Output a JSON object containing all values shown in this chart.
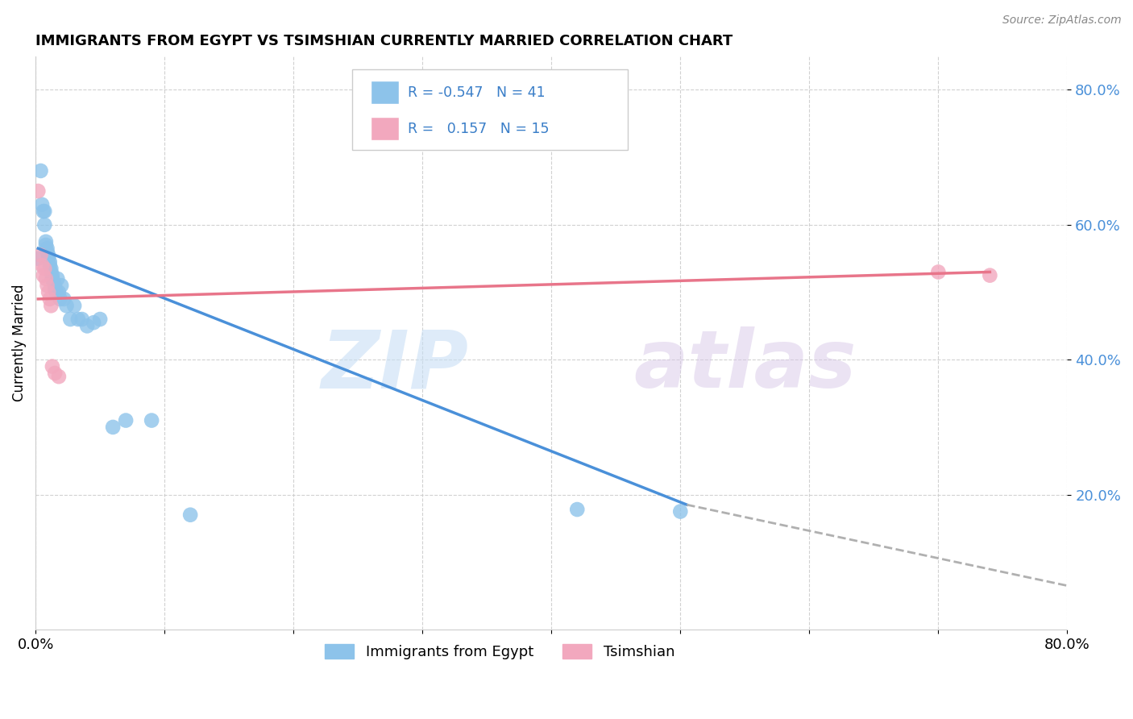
{
  "title": "IMMIGRANTS FROM EGYPT VS TSIMSHIAN CURRENTLY MARRIED CORRELATION CHART",
  "source": "Source: ZipAtlas.com",
  "ylabel": "Currently Married",
  "xlim": [
    0.0,
    0.8
  ],
  "ylim": [
    0.0,
    0.85
  ],
  "yticks": [
    0.2,
    0.4,
    0.6,
    0.8
  ],
  "ytick_labels": [
    "20.0%",
    "40.0%",
    "60.0%",
    "80.0%"
  ],
  "xticks": [
    0.0,
    0.1,
    0.2,
    0.3,
    0.4,
    0.5,
    0.6,
    0.7,
    0.8
  ],
  "xtick_labels": [
    "0.0%",
    "",
    "",
    "",
    "",
    "",
    "",
    "",
    "80.0%"
  ],
  "blue_color": "#8dc3ea",
  "pink_color": "#f2a8be",
  "blue_line_color": "#4a90d9",
  "pink_line_color": "#e8758a",
  "dashed_line_color": "#b0b0b0",
  "watermark_zip": "ZIP",
  "watermark_atlas": "atlas",
  "legend_label_blue": "Immigrants from Egypt",
  "legend_label_pink": "Tsimshian",
  "background_color": "#ffffff",
  "grid_color": "#cccccc",
  "blue_x": [
    0.002,
    0.004,
    0.005,
    0.006,
    0.007,
    0.007,
    0.008,
    0.008,
    0.009,
    0.009,
    0.01,
    0.01,
    0.011,
    0.011,
    0.012,
    0.012,
    0.013,
    0.013,
    0.014,
    0.015,
    0.015,
    0.016,
    0.017,
    0.018,
    0.019,
    0.02,
    0.022,
    0.024,
    0.027,
    0.03,
    0.033,
    0.036,
    0.04,
    0.045,
    0.05,
    0.06,
    0.07,
    0.09,
    0.12,
    0.42,
    0.5
  ],
  "blue_y": [
    0.55,
    0.68,
    0.63,
    0.62,
    0.62,
    0.6,
    0.57,
    0.575,
    0.565,
    0.56,
    0.555,
    0.55,
    0.545,
    0.54,
    0.535,
    0.53,
    0.525,
    0.52,
    0.515,
    0.51,
    0.505,
    0.5,
    0.52,
    0.5,
    0.49,
    0.51,
    0.49,
    0.48,
    0.46,
    0.48,
    0.46,
    0.46,
    0.45,
    0.455,
    0.46,
    0.3,
    0.31,
    0.31,
    0.17,
    0.178,
    0.175
  ],
  "pink_x": [
    0.002,
    0.004,
    0.005,
    0.006,
    0.007,
    0.008,
    0.009,
    0.01,
    0.011,
    0.012,
    0.013,
    0.015,
    0.018,
    0.7,
    0.74
  ],
  "pink_y": [
    0.65,
    0.555,
    0.54,
    0.525,
    0.535,
    0.52,
    0.51,
    0.5,
    0.49,
    0.48,
    0.39,
    0.38,
    0.375,
    0.53,
    0.525
  ],
  "blue_line_x_start": 0.002,
  "blue_line_x_solid_end": 0.505,
  "blue_line_x_dash_end": 0.8,
  "blue_line_y_start": 0.565,
  "blue_line_y_solid_end": 0.185,
  "blue_line_y_dash_end": 0.065,
  "pink_line_x_start": 0.002,
  "pink_line_x_end": 0.74,
  "pink_line_y_start": 0.49,
  "pink_line_y_end": 0.53
}
